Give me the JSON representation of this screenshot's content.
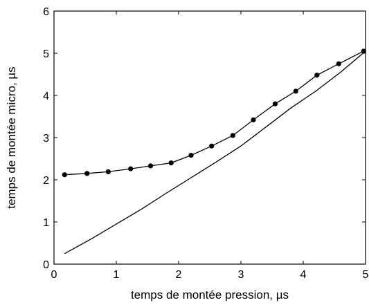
{
  "chart_data": {
    "type": "line",
    "title": "",
    "xlabel": "temps de montée pression, µs",
    "ylabel": "temps de montée micro, µs",
    "xlim": [
      0,
      5
    ],
    "ylim": [
      0,
      6
    ],
    "xticks": [
      "0",
      "1",
      "2",
      "3",
      "4",
      "5"
    ],
    "yticks": [
      "0",
      "1",
      "2",
      "3",
      "4",
      "5",
      "6"
    ],
    "grid": false,
    "legend": "none",
    "series": [
      {
        "marker": "dot",
        "x": [
          0.17,
          0.53,
          0.87,
          1.23,
          1.55,
          1.88,
          2.2,
          2.53,
          2.87,
          3.2,
          3.55,
          3.88,
          4.22,
          4.57,
          4.97
        ],
        "y": [
          2.12,
          2.15,
          2.19,
          2.26,
          2.33,
          2.4,
          2.58,
          2.8,
          3.05,
          3.42,
          3.8,
          4.1,
          4.48,
          4.75,
          5.05
        ]
      },
      {
        "marker": "none",
        "x": [
          0.17,
          0.6,
          1.0,
          1.4,
          1.8,
          2.2,
          2.6,
          3.0,
          3.4,
          3.8,
          4.2,
          4.6,
          5.0
        ],
        "y": [
          0.25,
          0.6,
          0.95,
          1.3,
          1.68,
          2.05,
          2.42,
          2.8,
          3.25,
          3.7,
          4.1,
          4.55,
          5.05
        ]
      }
    ],
    "colors": {
      "line": "#000000",
      "axes": "#000000",
      "background": "#ffffff"
    }
  }
}
